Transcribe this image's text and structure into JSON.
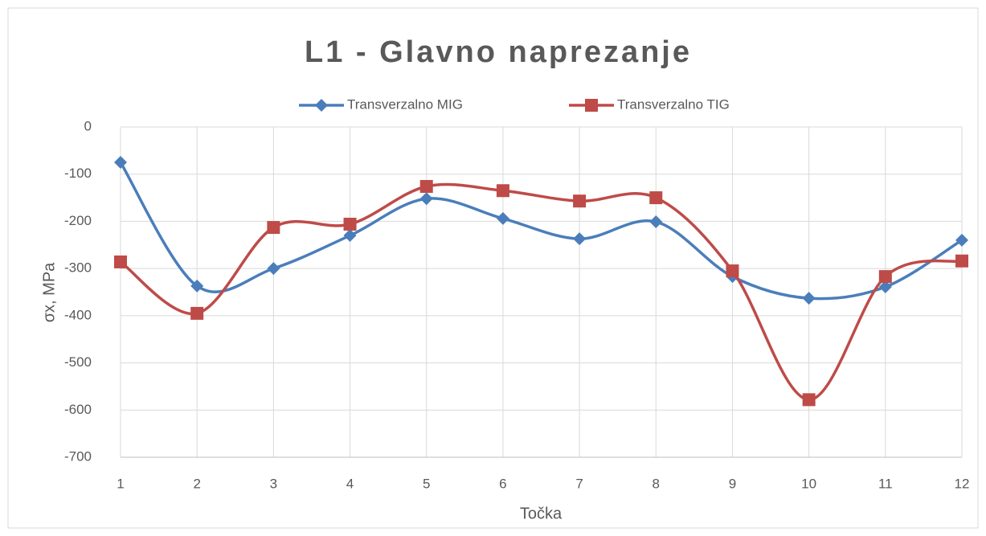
{
  "chart_data": {
    "type": "line",
    "title": "L1 - Glavno naprezanje",
    "x_label": "Točka",
    "y_label": "σx, MPa",
    "categories": [
      "1",
      "2",
      "3",
      "4",
      "5",
      "6",
      "7",
      "8",
      "9",
      "10",
      "11",
      "12"
    ],
    "series": [
      {
        "name": "Transverzalno MIG",
        "color": "#4a7ebb",
        "marker": "diamond",
        "values": [
          -75,
          -337,
          -300,
          -230,
          -152,
          -194,
          -237,
          -201,
          -317,
          -363,
          -339,
          -240
        ]
      },
      {
        "name": "Transverzalno TIG",
        "color": "#be4b48",
        "marker": "square",
        "values": [
          -286,
          -395,
          -213,
          -206,
          -126,
          -135,
          -157,
          -150,
          -305,
          -578,
          -317,
          -284
        ]
      }
    ],
    "ylim": [
      -700,
      0
    ],
    "yticks": [
      -700,
      -600,
      -500,
      -400,
      -300,
      -200,
      -100,
      0
    ],
    "grid": true,
    "smooth": true,
    "legend": "top"
  }
}
